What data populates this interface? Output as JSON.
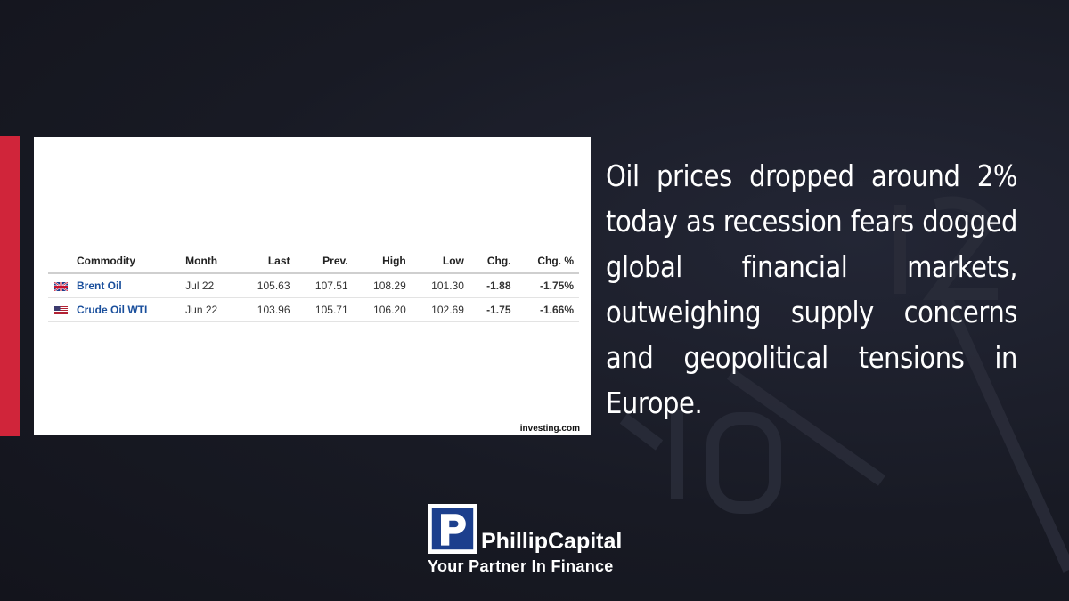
{
  "table": {
    "columns": [
      "Commodity",
      "Month",
      "Last",
      "Prev.",
      "High",
      "Low",
      "Chg.",
      "Chg. %"
    ],
    "rows": [
      {
        "flag": "uk-flag-icon",
        "name": "Brent Oil",
        "month": "Jul 22",
        "last": "105.63",
        "prev": "107.51",
        "high": "108.29",
        "low": "101.30",
        "chg": "-1.88",
        "chg_pct": "-1.75%"
      },
      {
        "flag": "us-flag-icon",
        "name": "Crude Oil WTI",
        "month": "Jun 22",
        "last": "103.96",
        "prev": "105.71",
        "high": "106.20",
        "low": "102.69",
        "chg": "-1.75",
        "chg_pct": "-1.66%"
      }
    ],
    "source": "investing.com"
  },
  "headline": "Oil prices dropped around 2% today as recession fears dogged global financial markets, outweighing supply concerns and geopolitical tensions in Europe.",
  "logo": {
    "brand": "PhillipCapital",
    "tagline": "Your Partner In Finance"
  },
  "colors": {
    "accent_red": "#d0253a",
    "negative": "#e00000",
    "link_blue": "#1a4f9c",
    "logo_blue": "#1c3f8d"
  }
}
